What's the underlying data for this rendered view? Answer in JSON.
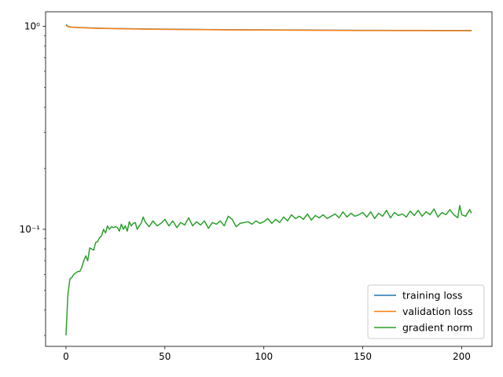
{
  "chart_data": {
    "type": "line",
    "title": "",
    "xlabel": "",
    "ylabel": "",
    "xlim": [
      -10.3,
      215.3
    ],
    "ylim": [
      0.0265,
      1.18
    ],
    "yscale": "log",
    "grid": false,
    "legend_position": "lower-right",
    "x_ticks": [
      0,
      50,
      100,
      150,
      200
    ],
    "y_ticks": [
      0.1,
      1
    ],
    "y_tick_labels": [
      "10⁻¹",
      "10⁰"
    ],
    "y_minor_ticks": [
      0.03,
      0.04,
      0.05,
      0.06,
      0.07,
      0.08,
      0.09,
      0.2,
      0.3,
      0.4,
      0.5,
      0.6,
      0.7,
      0.8,
      0.9
    ],
    "series": [
      {
        "name": "training loss",
        "color": "#1f77b4",
        "x": [
          0,
          1,
          2,
          3,
          5,
          8,
          12,
          16,
          20,
          30,
          40,
          50,
          60,
          70,
          80,
          90,
          100,
          110,
          120,
          130,
          140,
          150,
          160,
          170,
          180,
          190,
          200,
          205
        ],
        "values": [
          1.02,
          1.0,
          0.995,
          0.992,
          0.989,
          0.986,
          0.983,
          0.98,
          0.978,
          0.974,
          0.971,
          0.969,
          0.967,
          0.965,
          0.963,
          0.962,
          0.961,
          0.96,
          0.959,
          0.958,
          0.957,
          0.956,
          0.956,
          0.955,
          0.955,
          0.954,
          0.954,
          0.954
        ]
      },
      {
        "name": "validation loss",
        "color": "#ff7f0e",
        "x": [
          0,
          1,
          2,
          3,
          5,
          8,
          12,
          16,
          20,
          30,
          40,
          50,
          60,
          70,
          80,
          90,
          100,
          110,
          120,
          130,
          140,
          150,
          160,
          170,
          180,
          190,
          200,
          205
        ],
        "values": [
          1.01,
          0.997,
          0.992,
          0.99,
          0.987,
          0.984,
          0.981,
          0.978,
          0.976,
          0.972,
          0.969,
          0.967,
          0.965,
          0.963,
          0.961,
          0.96,
          0.959,
          0.958,
          0.957,
          0.956,
          0.955,
          0.954,
          0.954,
          0.953,
          0.953,
          0.952,
          0.952,
          0.952
        ]
      },
      {
        "name": "gradient norm",
        "color": "#2ca02c",
        "x": [
          0,
          1,
          2,
          3,
          4,
          5,
          6,
          7,
          8,
          9,
          10,
          11,
          12,
          13,
          14,
          15,
          16,
          17,
          18,
          19,
          20,
          21,
          22,
          23,
          24,
          25,
          26,
          27,
          28,
          29,
          30,
          31,
          32,
          33,
          34,
          35,
          36,
          37,
          38,
          39,
          40,
          42,
          44,
          46,
          48,
          50,
          52,
          54,
          56,
          58,
          60,
          62,
          64,
          66,
          68,
          70,
          72,
          74,
          76,
          78,
          80,
          82,
          84,
          86,
          88,
          90,
          92,
          94,
          96,
          98,
          100,
          102,
          104,
          106,
          108,
          110,
          112,
          114,
          116,
          118,
          120,
          122,
          124,
          126,
          128,
          130,
          132,
          134,
          136,
          138,
          140,
          142,
          144,
          146,
          148,
          150,
          152,
          154,
          156,
          158,
          160,
          162,
          164,
          166,
          168,
          170,
          172,
          174,
          176,
          178,
          180,
          182,
          184,
          186,
          188,
          190,
          192,
          194,
          196,
          198,
          199,
          200,
          202,
          204,
          205
        ],
        "values": [
          0.03,
          0.048,
          0.057,
          0.058,
          0.06,
          0.061,
          0.062,
          0.062,
          0.065,
          0.07,
          0.074,
          0.07,
          0.081,
          0.08,
          0.079,
          0.086,
          0.087,
          0.091,
          0.093,
          0.1,
          0.096,
          0.104,
          0.1,
          0.103,
          0.102,
          0.103,
          0.102,
          0.098,
          0.106,
          0.1,
          0.104,
          0.098,
          0.109,
          0.104,
          0.107,
          0.108,
          0.1,
          0.104,
          0.107,
          0.115,
          0.109,
          0.103,
          0.11,
          0.104,
          0.107,
          0.112,
          0.104,
          0.11,
          0.102,
          0.108,
          0.105,
          0.114,
          0.104,
          0.109,
          0.105,
          0.11,
          0.101,
          0.108,
          0.106,
          0.11,
          0.104,
          0.116,
          0.112,
          0.103,
          0.107,
          0.108,
          0.109,
          0.106,
          0.11,
          0.107,
          0.109,
          0.113,
          0.107,
          0.112,
          0.108,
          0.115,
          0.11,
          0.118,
          0.113,
          0.116,
          0.112,
          0.119,
          0.111,
          0.117,
          0.114,
          0.118,
          0.113,
          0.116,
          0.119,
          0.114,
          0.122,
          0.115,
          0.12,
          0.116,
          0.118,
          0.121,
          0.115,
          0.122,
          0.113,
          0.12,
          0.116,
          0.124,
          0.114,
          0.121,
          0.117,
          0.119,
          0.115,
          0.123,
          0.117,
          0.124,
          0.116,
          0.122,
          0.118,
          0.126,
          0.115,
          0.121,
          0.118,
          0.125,
          0.118,
          0.114,
          0.131,
          0.118,
          0.116,
          0.125,
          0.12
        ]
      }
    ]
  }
}
